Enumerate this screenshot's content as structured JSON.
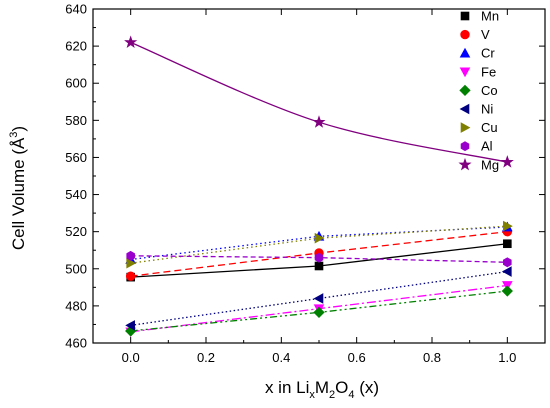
{
  "chart_data": {
    "type": "line",
    "title": "",
    "xlabel": "x in Li",
    "xlabel_sub_x": "x",
    "xlabel_mid": "M",
    "xlabel_sub_2": "2",
    "xlabel_mid2": "O",
    "xlabel_sub_4": "4",
    "xlabel_tail": " (x)",
    "ylabel": "Cell Volume (Å",
    "ylabel_sup": "3",
    "ylabel_tail": ")",
    "xlim": [
      -0.1,
      1.1
    ],
    "ylim": [
      460,
      640
    ],
    "xticks": [
      0.0,
      0.2,
      0.4,
      0.6,
      0.8,
      1.0
    ],
    "xtick_labels": [
      "0.0",
      "0.2",
      "0.4",
      "0.6",
      "0.8",
      "1.0"
    ],
    "yticks": [
      460,
      480,
      500,
      520,
      540,
      560,
      580,
      600,
      620,
      640
    ],
    "ytick_labels": [
      "460",
      "480",
      "500",
      "520",
      "540",
      "560",
      "580",
      "600",
      "620",
      "640"
    ],
    "grid": false,
    "legend_position": "top-right",
    "x": [
      0.0,
      0.5,
      1.0
    ],
    "series": [
      {
        "name": "Mn",
        "values": [
          495.5,
          501.5,
          513.5
        ],
        "color": "#000000",
        "marker": "square",
        "dash": "none"
      },
      {
        "name": "V",
        "values": [
          496.0,
          508.5,
          520.0
        ],
        "color": "#ff0000",
        "marker": "circle",
        "dash": "7,4"
      },
      {
        "name": "Cr",
        "values": [
          505.0,
          517.5,
          522.5
        ],
        "color": "#0000ff",
        "marker": "triangle-up",
        "dash": "1.5,3"
      },
      {
        "name": "Fe",
        "values": [
          466.0,
          478.5,
          491.0
        ],
        "color": "#ff00ff",
        "marker": "triangle-down",
        "dash": "9,3,2,3"
      },
      {
        "name": "Co",
        "values": [
          466.5,
          476.5,
          488.0
        ],
        "color": "#008000",
        "marker": "diamond",
        "dash": "7,3,2,3,2,3"
      },
      {
        "name": "Ni",
        "values": [
          469.5,
          484.0,
          498.5
        ],
        "color": "#000080",
        "marker": "triangle-left",
        "dash": "1.5,2.5"
      },
      {
        "name": "Cu",
        "values": [
          503.0,
          516.5,
          523.0
        ],
        "color": "#808000",
        "marker": "triangle-right",
        "dash": "1.5,3"
      },
      {
        "name": "Al",
        "values": [
          507.0,
          506.0,
          503.5
        ],
        "color": "#9900cc",
        "marker": "hexagon",
        "dash": "5,3"
      },
      {
        "name": "Mg",
        "values": [
          622.0,
          579.0,
          557.5
        ],
        "color": "#800080",
        "marker": "star",
        "dash": "none",
        "smooth": true
      }
    ]
  }
}
